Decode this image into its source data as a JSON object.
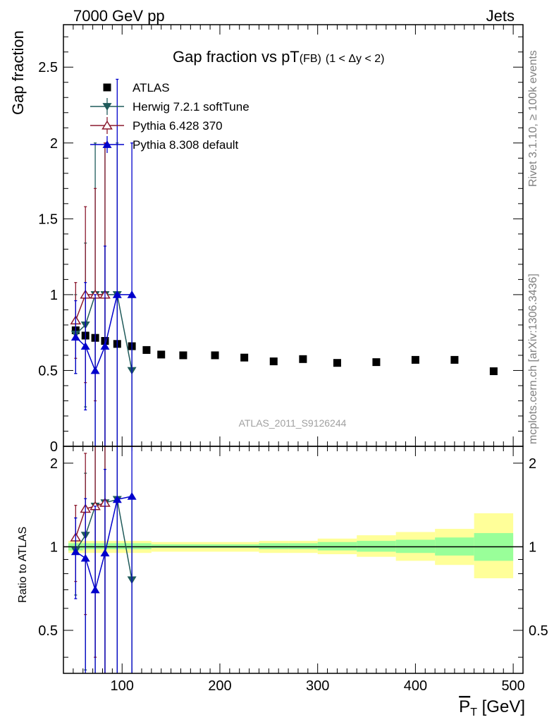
{
  "header": {
    "left": "7000 GeV pp",
    "right": "Jets",
    "side_top": "Rivet 3.1.10, ≥ 100k events",
    "side_bottom": "mcplots.cern.ch [arXiv:1306.3436]",
    "watermark": "ATLAS_2011_S9126244"
  },
  "chart_data": [
    {
      "type": "scatter",
      "title_main": "Gap fraction vs pT",
      "title_sub": "(FB)",
      "title_range": "(1 < Δy < 2)",
      "ylabel": "Gap fraction",
      "xlim": [
        40,
        510
      ],
      "ylim": [
        0,
        2.78
      ],
      "yticks": [
        "0",
        "0.5",
        "1",
        "1.5",
        "2",
        "2.5"
      ],
      "grid": false,
      "legend_position": "top-left",
      "series": [
        {
          "name": "ATLAS",
          "color": "#000000",
          "marker": "square",
          "x": [
            52.5,
            62.5,
            72.5,
            82.5,
            95,
            110,
            125,
            140,
            162.5,
            195,
            225,
            255,
            285,
            320,
            360,
            400,
            440,
            480
          ],
          "y": [
            0.765,
            0.73,
            0.715,
            0.695,
            0.675,
            0.66,
            0.635,
            0.605,
            0.6,
            0.6,
            0.585,
            0.56,
            0.575,
            0.55,
            0.555,
            0.57,
            0.57,
            0.495
          ]
        },
        {
          "name": "Herwig 7.2.1 softTune",
          "color": "#1f5a5a",
          "marker": "triangle-down",
          "x": [
            52.5,
            62.5,
            72.5,
            82.5,
            95,
            110
          ],
          "y": [
            0.74,
            0.8,
            1.0,
            1.0,
            1.0,
            0.5
          ],
          "err": [
            0.26,
            0.54,
            1.0,
            1.0,
            1.0,
            0.5
          ]
        },
        {
          "name": "Pythia 6.428 370",
          "color": "#8b1a2e",
          "marker": "triangle-open",
          "x": [
            52.5,
            62.5,
            72.5,
            82.5
          ],
          "y": [
            0.83,
            1.0,
            1.0,
            1.0
          ],
          "err": [
            0.25,
            0.58,
            0.7,
            1.0
          ]
        },
        {
          "name": "Pythia 8.308 default",
          "color": "#0000cc",
          "marker": "triangle-up",
          "x": [
            52.5,
            62.5,
            72.5,
            82.5,
            95,
            110
          ],
          "y": [
            0.72,
            0.66,
            0.5,
            0.66,
            1.0,
            1.0
          ],
          "err": [
            0.24,
            0.42,
            0.5,
            0.66,
            1.42,
            1.0
          ]
        }
      ]
    },
    {
      "type": "scatter",
      "ylabel": "Ratio to ATLAS",
      "xlabel": "P_T [GeV]",
      "xlabel_main": "P",
      "xlabel_sub": "T",
      "xlabel_unit": " [GeV]",
      "xlim": [
        40,
        510
      ],
      "ylim": [
        0.35,
        2.3
      ],
      "ylog": true,
      "yticks": [
        "0.5",
        "1",
        "2"
      ],
      "xticks": [
        "100",
        "200",
        "300",
        "400",
        "500"
      ],
      "bands": [
        {
          "x0": 45,
          "x1": 60,
          "inner": [
            0.97,
            1.03
          ],
          "outer": [
            0.95,
            1.05
          ]
        },
        {
          "x0": 60,
          "x1": 130,
          "inner": [
            0.98,
            1.03
          ],
          "outer": [
            0.95,
            1.05
          ]
        },
        {
          "x0": 130,
          "x1": 240,
          "inner": [
            0.99,
            1.02
          ],
          "outer": [
            0.96,
            1.04
          ]
        },
        {
          "x0": 240,
          "x1": 270,
          "inner": [
            0.98,
            1.03
          ],
          "outer": [
            0.95,
            1.05
          ]
        },
        {
          "x0": 270,
          "x1": 300,
          "inner": [
            0.98,
            1.03
          ],
          "outer": [
            0.95,
            1.05
          ]
        },
        {
          "x0": 300,
          "x1": 340,
          "inner": [
            0.97,
            1.04
          ],
          "outer": [
            0.94,
            1.07
          ]
        },
        {
          "x0": 340,
          "x1": 380,
          "inner": [
            0.96,
            1.05
          ],
          "outer": [
            0.92,
            1.1
          ]
        },
        {
          "x0": 380,
          "x1": 420,
          "inner": [
            0.95,
            1.06
          ],
          "outer": [
            0.89,
            1.13
          ]
        },
        {
          "x0": 420,
          "x1": 460,
          "inner": [
            0.93,
            1.08
          ],
          "outer": [
            0.86,
            1.16
          ]
        },
        {
          "x0": 460,
          "x1": 500,
          "inner": [
            0.89,
            1.12
          ],
          "outer": [
            0.77,
            1.32
          ]
        }
      ],
      "series": [
        {
          "name": "Herwig 7.2.1 softTune",
          "color": "#1f5a5a",
          "marker": "triangle-down",
          "x": [
            52.5,
            62.5,
            72.5,
            82.5,
            95,
            110
          ],
          "y": [
            0.97,
            1.1,
            1.4,
            1.44,
            1.48,
            0.76
          ],
          "err": [
            0.3,
            0.74,
            1.4,
            1.44,
            1.48,
            0.76
          ]
        },
        {
          "name": "Pythia 6.428 370",
          "color": "#8b1a2e",
          "marker": "triangle-open",
          "x": [
            52.5,
            62.5,
            72.5,
            82.5
          ],
          "y": [
            1.08,
            1.37,
            1.4,
            1.44
          ],
          "err": [
            0.33,
            0.8,
            1.0,
            1.44
          ]
        },
        {
          "name": "Pythia 8.308 default",
          "color": "#0000cc",
          "marker": "triangle-up",
          "x": [
            52.5,
            62.5,
            72.5,
            82.5,
            95,
            110
          ],
          "y": [
            0.96,
            0.91,
            0.7,
            0.95,
            1.48,
            1.52
          ],
          "err": [
            0.31,
            0.58,
            0.7,
            0.95,
            2.0,
            1.52
          ]
        }
      ]
    }
  ]
}
